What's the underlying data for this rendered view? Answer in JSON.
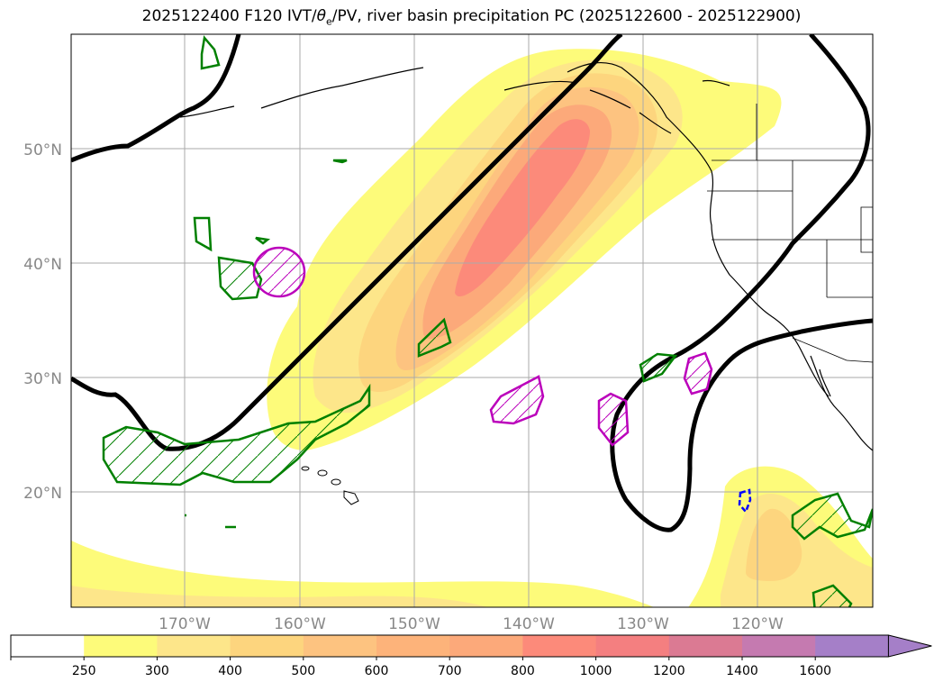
{
  "title": {
    "prefix": "2025122400 F120 IVT/",
    "theta": "θ",
    "sub": "e",
    "suffix": "/PV, river basin precipitation PC (2025122600 - 2025122900)"
  },
  "map": {
    "lat_labels": [
      "50°N",
      "40°N",
      "30°N",
      "20°N"
    ],
    "lon_labels": [
      "170°W",
      "160°W",
      "150°W",
      "140°W",
      "130°W",
      "120°W"
    ],
    "colors": {
      "ivt_250": "#fdfb7a",
      "ivt_300": "#fde68a",
      "ivt_400": "#fdd57e",
      "ivt_500": "#fdc380",
      "ivt_600": "#fca97a",
      "ivt_700": "#fc8a7a",
      "coast": "#000000",
      "pv_contour": "#008000",
      "theta_contour": "#bb00bb",
      "blue_contour": "#0000ff",
      "grid": "#aaaaaa"
    }
  },
  "colorbar": {
    "ticks": [
      "250",
      "300",
      "400",
      "500",
      "600",
      "700",
      "800",
      "1000",
      "1200",
      "1400",
      "1600"
    ],
    "colors": [
      "#ffffff",
      "#fdfb7a",
      "#fde68a",
      "#fdd57e",
      "#fdc380",
      "#fdb37a",
      "#fca97a",
      "#fc8a7a",
      "#f47f80",
      "#db7a93",
      "#c57ab0",
      "#a57fc8"
    ]
  }
}
